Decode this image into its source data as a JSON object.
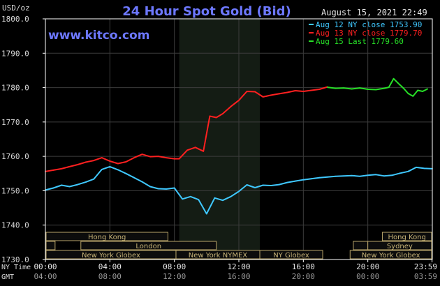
{
  "chart_data": {
    "type": "line",
    "title": "24 Hour Spot Gold (Bid)",
    "watermark": "www.kitco.com",
    "timestamp": "August 15, 2021 22:49",
    "ylabel": "USD/oz",
    "ylim": [
      1730,
      1800
    ],
    "yticks": [
      "1800.0",
      "1790.0",
      "1780.0",
      "1770.0",
      "1760.0",
      "1750.0",
      "1740.0",
      "1730.0"
    ],
    "xrange_hours": [
      0,
      24
    ],
    "ny_time_label": "NY Time",
    "gmt_label": "GMT",
    "x_ticks_ny": [
      "00:00",
      "04:00",
      "08:00",
      "12:00",
      "16:00",
      "20:00",
      "23:59"
    ],
    "x_ticks_gmt": [
      "04:00",
      "08:00",
      "12:00",
      "16:00",
      "20:00",
      "00:00",
      "03:59"
    ],
    "x_tick_hours": [
      0,
      4,
      8,
      12,
      16,
      20,
      23.983
    ],
    "shaded_session_hours": [
      8.3,
      13.3
    ],
    "colors": {
      "background": "#000000",
      "frame": "#ffffff",
      "grid": "#3c3c3c",
      "title": "#6d78ff",
      "watermark": "#6d78ff",
      "shade": "#141c14",
      "market_box_fill": "#0c0c0c",
      "market_box_border": "#b9a56a",
      "market_box_text": "#c8b478",
      "axis_text": "#d8d8d8"
    },
    "legend_position": "top-right",
    "series": [
      {
        "name": "Aug 12 NY close 1753.90",
        "color": "#3fc8ff",
        "x": [
          0,
          0.5,
          1,
          1.5,
          2,
          2.5,
          3,
          3.5,
          4,
          4.5,
          5,
          5.5,
          6,
          6.5,
          7,
          7.5,
          8,
          8.5,
          9,
          9.5,
          10,
          10.5,
          11,
          11.5,
          12,
          12.5,
          13,
          13.5,
          14,
          14.5,
          15,
          15.5,
          16,
          16.5,
          17,
          17.5,
          18,
          18.5,
          19,
          19.5,
          20,
          20.5,
          21,
          21.5,
          22,
          22.5,
          23,
          23.5,
          24
        ],
        "values": [
          1750.2,
          1750.8,
          1751.6,
          1751.2,
          1751.8,
          1752.5,
          1753.4,
          1756.2,
          1757.0,
          1756.1,
          1755.0,
          1753.8,
          1752.6,
          1751.2,
          1750.6,
          1750.5,
          1750.8,
          1747.6,
          1748.3,
          1747.4,
          1743.3,
          1747.9,
          1747.2,
          1748.3,
          1749.8,
          1751.7,
          1750.9,
          1751.6,
          1751.5,
          1751.8,
          1752.4,
          1752.8,
          1753.2,
          1753.5,
          1753.8,
          1754.0,
          1754.2,
          1754.3,
          1754.4,
          1754.2,
          1754.5,
          1754.7,
          1754.3,
          1754.5,
          1755.1,
          1755.6,
          1756.8,
          1756.5,
          1756.4
        ]
      },
      {
        "name": "Aug 13 NY close 1779.70",
        "color": "#ff2020",
        "x": [
          0,
          0.5,
          1,
          1.5,
          2,
          2.5,
          3,
          3.5,
          4,
          4.5,
          5,
          5.5,
          6,
          6.5,
          7,
          7.5,
          8,
          8.3,
          8.8,
          9.3,
          9.8,
          10.2,
          10.6,
          11,
          11.5,
          12,
          12.5,
          13,
          13.5,
          14,
          14.5,
          15,
          15.5,
          16,
          16.5,
          17,
          17.5
        ],
        "values": [
          1755.6,
          1756.0,
          1756.4,
          1757.0,
          1757.6,
          1758.3,
          1758.8,
          1759.6,
          1758.6,
          1757.9,
          1758.4,
          1759.6,
          1760.6,
          1759.9,
          1760.0,
          1759.6,
          1759.3,
          1759.3,
          1761.8,
          1762.6,
          1761.5,
          1771.7,
          1771.3,
          1772.4,
          1774.5,
          1776.3,
          1778.9,
          1778.8,
          1777.3,
          1777.8,
          1778.2,
          1778.6,
          1779.1,
          1778.9,
          1779.2,
          1779.5,
          1780.2
        ]
      },
      {
        "name": "Aug 15 Last 1779.60",
        "color": "#27e027",
        "x": [
          17.5,
          18,
          18.5,
          19,
          19.5,
          20,
          20.5,
          21,
          21.3,
          21.6,
          21.9,
          22.2,
          22.5,
          22.8,
          23.1,
          23.4,
          23.7
        ],
        "values": [
          1780.1,
          1779.8,
          1779.9,
          1779.6,
          1779.9,
          1779.5,
          1779.4,
          1779.8,
          1780.1,
          1782.6,
          1781.2,
          1779.9,
          1778.3,
          1777.5,
          1779.2,
          1778.9,
          1779.6
        ]
      }
    ],
    "markets": [
      {
        "label": "Hong Kong",
        "start": -1.0,
        "end": 7.6,
        "row": 0
      },
      {
        "label": "Hong Kong",
        "start": 20.9,
        "end": 26.0,
        "row": 0
      },
      {
        "label": "",
        "start": -1.0,
        "end": 0.6,
        "row": 1
      },
      {
        "label": "London",
        "start": 2.2,
        "end": 10.6,
        "row": 1
      },
      {
        "label": "",
        "start": 19.1,
        "end": 20.0,
        "row": 1
      },
      {
        "label": "Sydney",
        "start": 20.0,
        "end": 26.0,
        "row": 1
      },
      {
        "label": "New York Globex",
        "start": -1.0,
        "end": 8.1,
        "row": 2
      },
      {
        "label": "New York NYMEX",
        "start": 8.1,
        "end": 13.3,
        "row": 2
      },
      {
        "label": "NY Globex",
        "start": 13.3,
        "end": 17.2,
        "row": 2
      },
      {
        "label": "New York Globex",
        "start": 18.9,
        "end": 26.0,
        "row": 2
      }
    ]
  }
}
